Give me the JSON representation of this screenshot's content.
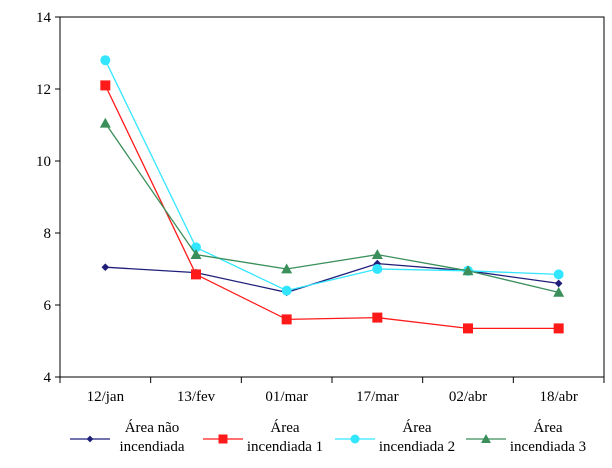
{
  "chart_data": {
    "type": "line",
    "categories": [
      "12/jan",
      "13/fev",
      "01/mar",
      "17/mar",
      "02/abr",
      "18/abr"
    ],
    "ylim": [
      4,
      14
    ],
    "yticks": [
      4,
      6,
      8,
      10,
      12,
      14
    ],
    "grid": false,
    "legend_position": "bottom",
    "series": [
      {
        "name": "Área não incendiada",
        "name_lines": [
          "Área não",
          "incendiada"
        ],
        "color": "#1f1f7a",
        "marker": "diamond",
        "values": [
          7.05,
          6.9,
          6.35,
          7.15,
          6.95,
          6.6
        ]
      },
      {
        "name": "Área incendiada 1",
        "name_lines": [
          "Área",
          "incendiada 1"
        ],
        "color": "#ff1a1a",
        "marker": "square",
        "values": [
          12.1,
          6.85,
          5.6,
          5.65,
          5.35,
          5.35
        ]
      },
      {
        "name": "Área incendiada 2",
        "name_lines": [
          "Área",
          "incendiada 2"
        ],
        "color": "#33e6ff",
        "marker": "circle",
        "values": [
          12.8,
          7.6,
          6.4,
          7.0,
          6.95,
          6.85
        ]
      },
      {
        "name": "Área incendiada 3",
        "name_lines": [
          "Área",
          "incendiada 3"
        ],
        "color": "#3a8f5a",
        "marker": "triangle",
        "values": [
          11.05,
          7.4,
          7.0,
          7.4,
          6.95,
          6.35
        ]
      }
    ]
  }
}
